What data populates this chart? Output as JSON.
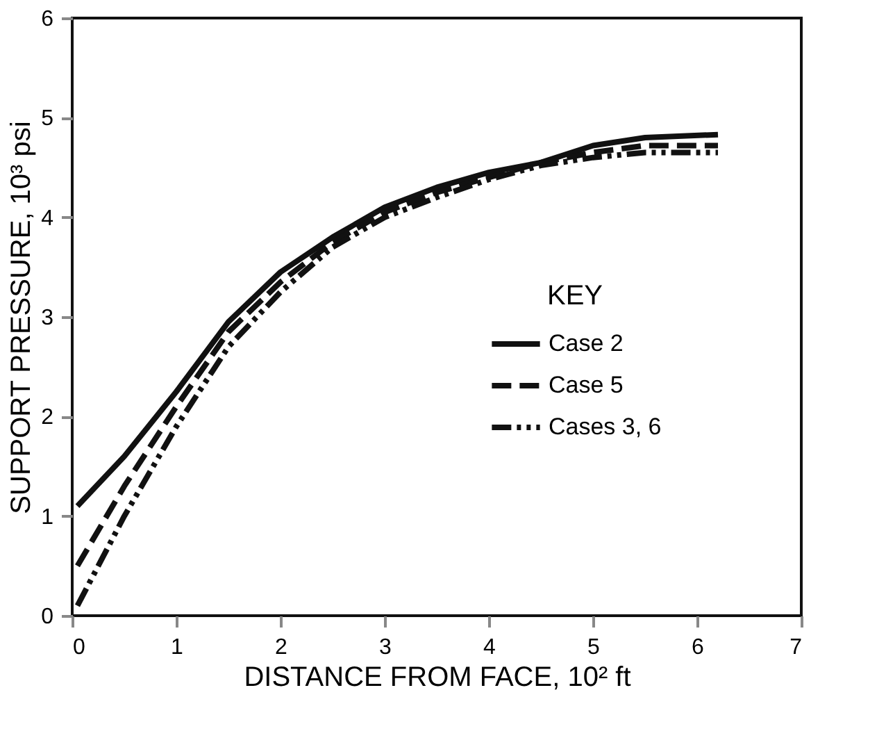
{
  "chart_data": {
    "type": "line",
    "xlabel": "DISTANCE FROM FACE, 10² ft",
    "ylabel": "SUPPORT PRESSURE, 10³ psi",
    "legend_title": "KEY",
    "legend": "right",
    "grid": false,
    "xlim": [
      0,
      7
    ],
    "ylim": [
      0,
      6
    ],
    "xticks": [
      0,
      1,
      2,
      3,
      4,
      5,
      6,
      7
    ],
    "yticks": [
      0,
      1,
      2,
      3,
      4,
      5,
      6
    ],
    "x": [
      0.05,
      0.5,
      1,
      1.5,
      2,
      2.5,
      3,
      3.5,
      4,
      4.5,
      5,
      5.5,
      6.2
    ],
    "series": [
      {
        "name": "Case 2",
        "color": "#111111",
        "line_style": "solid",
        "values": [
          1.1,
          1.6,
          2.25,
          2.95,
          3.45,
          3.8,
          4.1,
          4.3,
          4.45,
          4.55,
          4.72,
          4.8,
          4.83
        ]
      },
      {
        "name": "Case 5",
        "color": "#111111",
        "line_style": "dashed",
        "values": [
          0.5,
          1.3,
          2.1,
          2.85,
          3.35,
          3.75,
          4.05,
          4.25,
          4.4,
          4.55,
          4.65,
          4.72,
          4.72
        ]
      },
      {
        "name": "Cases 3, 6",
        "color": "#111111",
        "line_style": "dashdot",
        "values": [
          0.1,
          1.0,
          1.9,
          2.7,
          3.25,
          3.7,
          4.0,
          4.2,
          4.38,
          4.52,
          4.6,
          4.65,
          4.65
        ]
      }
    ]
  }
}
